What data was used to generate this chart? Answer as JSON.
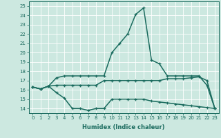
{
  "xlabel": "Humidex (Indice chaleur)",
  "xlim": [
    -0.5,
    23.5
  ],
  "ylim": [
    13.5,
    25.5
  ],
  "xticks": [
    0,
    1,
    2,
    3,
    4,
    5,
    6,
    7,
    8,
    9,
    10,
    11,
    12,
    13,
    14,
    15,
    16,
    17,
    18,
    19,
    20,
    21,
    22,
    23
  ],
  "yticks": [
    14,
    15,
    16,
    17,
    18,
    19,
    20,
    21,
    22,
    23,
    24,
    25
  ],
  "background_color": "#cce8e0",
  "grid_color": "#ffffff",
  "line_color": "#1a6b5e",
  "line_width": 1.1,
  "marker": "+",
  "marker_size": 3.5,
  "marker_ew": 0.9,
  "line1_x": [
    0,
    1,
    2,
    3,
    4,
    5,
    6,
    7,
    8,
    9,
    10,
    11,
    12,
    13,
    14,
    15,
    16,
    17,
    18,
    19,
    20,
    21,
    22,
    23
  ],
  "line1_y": [
    16.3,
    16.1,
    16.4,
    16.5,
    16.5,
    16.5,
    16.5,
    16.5,
    16.5,
    17.0,
    17.0,
    17.0,
    17.0,
    17.0,
    17.0,
    17.0,
    17.0,
    17.2,
    17.2,
    17.2,
    17.3,
    17.4,
    17.0,
    14.0
  ],
  "line2_x": [
    0,
    1,
    2,
    3,
    4,
    5,
    6,
    7,
    8,
    9,
    10,
    11,
    12,
    13,
    14,
    15,
    16,
    17,
    18,
    19,
    20,
    21,
    22,
    23
  ],
  "line2_y": [
    16.3,
    16.1,
    16.4,
    15.7,
    15.1,
    14.0,
    14.0,
    13.8,
    14.0,
    14.0,
    15.0,
    15.0,
    15.0,
    15.0,
    15.0,
    14.8,
    14.7,
    14.6,
    14.5,
    14.4,
    14.3,
    14.2,
    14.1,
    14.0
  ],
  "line3_x": [
    0,
    1,
    2,
    3,
    4,
    5,
    6,
    7,
    8,
    9,
    10,
    11,
    12,
    13,
    14,
    15,
    16,
    17,
    18,
    19,
    20,
    21,
    22,
    23
  ],
  "line3_y": [
    16.3,
    16.1,
    16.4,
    17.3,
    17.5,
    17.5,
    17.5,
    17.5,
    17.5,
    17.5,
    20.0,
    21.0,
    22.0,
    24.1,
    24.8,
    19.2,
    18.8,
    17.5,
    17.5,
    17.5,
    17.5,
    17.5,
    16.5,
    14.0
  ]
}
